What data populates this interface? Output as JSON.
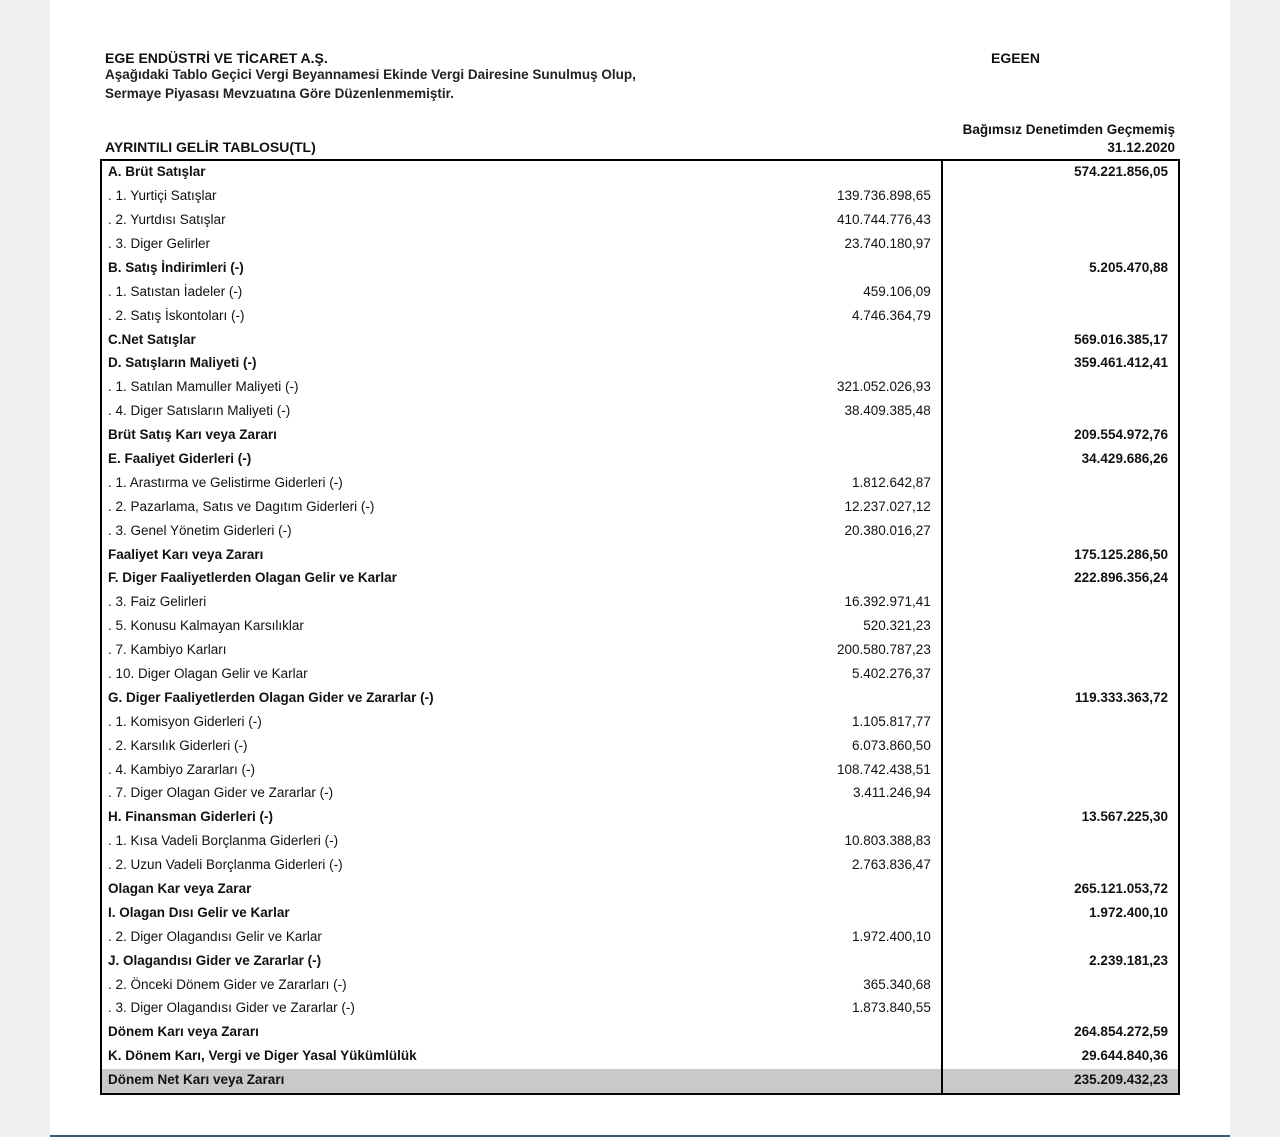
{
  "header": {
    "company": "EGE ENDÜSTRİ VE TİCARET A.Ş.",
    "ticker": "EGEEN",
    "subtitle1": "Aşağıdaki Tablo Geçici Vergi Beyannamesi Ekinde Vergi Dairesine Sunulmuş Olup,",
    "subtitle2": "Sermaye Piyasası Mevzuatına Göre Düzenlenmemiştir.",
    "title": "AYRINTILI GELİR TABLOSU(TL)",
    "audit": "Bağımsız Denetimden Geçmemiş",
    "date": "31.12.2020"
  },
  "rows": [
    {
      "label": "A. Brüt Satışlar",
      "c1": "",
      "c2": "574.221.856,05",
      "bold": true
    },
    {
      "label": ". 1. Yurtiçi Satışlar",
      "c1": "139.736.898,65",
      "c2": "",
      "bold": false,
      "indent": true
    },
    {
      "label": ". 2. Yurtdısı Satışlar",
      "c1": "410.744.776,43",
      "c2": "",
      "bold": false,
      "indent": true
    },
    {
      "label": ". 3. Diger Gelirler",
      "c1": "23.740.180,97",
      "c2": "",
      "bold": false,
      "indent": true
    },
    {
      "label": "B. Satış İndirimleri (-)",
      "c1": "",
      "c2": "5.205.470,88",
      "bold": true
    },
    {
      "label": ". 1. Satıstan İadeler (-)",
      "c1": "459.106,09",
      "c2": "",
      "bold": false,
      "indent": true
    },
    {
      "label": ". 2. Satış İskontoları (-)",
      "c1": "4.746.364,79",
      "c2": "",
      "bold": false,
      "indent": true
    },
    {
      "label": "C.Net Satışlar",
      "c1": "",
      "c2": "569.016.385,17",
      "bold": true
    },
    {
      "label": "D. Satışların Maliyeti (-)",
      "c1": "",
      "c2": "359.461.412,41",
      "bold": true
    },
    {
      "label": ". 1. Satılan Mamuller Maliyeti (-)",
      "c1": "321.052.026,93",
      "c2": "",
      "bold": false,
      "indent": true
    },
    {
      "label": ". 4. Diger Satısların Maliyeti (-)",
      "c1": "38.409.385,48",
      "c2": "",
      "bold": false,
      "indent": true
    },
    {
      "label": "Brüt Satış Karı veya Zararı",
      "c1": "",
      "c2": "209.554.972,76",
      "bold": true
    },
    {
      "label": "E. Faaliyet Giderleri (-)",
      "c1": "",
      "c2": "34.429.686,26",
      "bold": true
    },
    {
      "label": ". 1. Arastırma ve Gelistirme Giderleri (-)",
      "c1": "1.812.642,87",
      "c2": "",
      "bold": false,
      "indent": true
    },
    {
      "label": ". 2. Pazarlama, Satıs ve Dagıtım Giderleri (-)",
      "c1": "12.237.027,12",
      "c2": "",
      "bold": false,
      "indent": true
    },
    {
      "label": ". 3. Genel Yönetim Giderleri (-)",
      "c1": "20.380.016,27",
      "c2": "",
      "bold": false,
      "indent": true
    },
    {
      "label": "Faaliyet Karı veya Zararı",
      "c1": "",
      "c2": "175.125.286,50",
      "bold": true
    },
    {
      "label": "F. Diger Faaliyetlerden Olagan Gelir ve Karlar",
      "c1": "",
      "c2": "222.896.356,24",
      "bold": true
    },
    {
      "label": ". 3. Faiz Gelirleri",
      "c1": "16.392.971,41",
      "c2": "",
      "bold": false,
      "indent": true
    },
    {
      "label": ". 5. Konusu Kalmayan Karsılıklar",
      "c1": "520.321,23",
      "c2": "",
      "bold": false,
      "indent": true
    },
    {
      "label": ". 7. Kambiyo Karları",
      "c1": "200.580.787,23",
      "c2": "",
      "bold": false,
      "indent": true
    },
    {
      "label": ". 10. Diger Olagan Gelir ve Karlar",
      "c1": "5.402.276,37",
      "c2": "",
      "bold": false,
      "indent": true
    },
    {
      "label": "G. Diger Faaliyetlerden Olagan Gider ve Zararlar (-)",
      "c1": "",
      "c2": "119.333.363,72",
      "bold": true
    },
    {
      "label": ". 1. Komisyon Giderleri (-)",
      "c1": "1.105.817,77",
      "c2": "",
      "bold": false,
      "indent": true
    },
    {
      "label": ". 2. Karsılık Giderleri (-)",
      "c1": "6.073.860,50",
      "c2": "",
      "bold": false,
      "indent": true
    },
    {
      "label": ". 4. Kambiyo Zararları (-)",
      "c1": "108.742.438,51",
      "c2": "",
      "bold": false,
      "indent": true
    },
    {
      "label": ". 7. Diger Olagan Gider ve Zararlar (-)",
      "c1": "3.411.246,94",
      "c2": "",
      "bold": false,
      "indent": true
    },
    {
      "label": "H. Finansman Giderleri (-)",
      "c1": "",
      "c2": "13.567.225,30",
      "bold": true
    },
    {
      "label": ". 1. Kısa Vadeli Borçlanma Giderleri (-)",
      "c1": "10.803.388,83",
      "c2": "",
      "bold": false,
      "indent": true
    },
    {
      "label": ". 2. Uzun Vadeli Borçlanma Giderleri (-)",
      "c1": "2.763.836,47",
      "c2": "",
      "bold": false,
      "indent": true
    },
    {
      "label": "Olagan Kar veya Zarar",
      "c1": "",
      "c2": "265.121.053,72",
      "bold": true
    },
    {
      "label": "I. Olagan Dısı Gelir ve Karlar",
      "c1": "",
      "c2": "1.972.400,10",
      "bold": true
    },
    {
      "label": ". 2. Diger Olagandısı Gelir ve Karlar",
      "c1": "1.972.400,10",
      "c2": "",
      "bold": false,
      "indent": true
    },
    {
      "label": "J. Olagandısı Gider ve Zararlar (-)",
      "c1": "",
      "c2": "2.239.181,23",
      "bold": true
    },
    {
      "label": ". 2. Önceki Dönem Gider ve Zararları (-)",
      "c1": "365.340,68",
      "c2": "",
      "bold": false,
      "indent": true
    },
    {
      "label": ". 3. Diger Olagandısı Gider ve Zararlar (-)",
      "c1": "1.873.840,55",
      "c2": "",
      "bold": false,
      "indent": true
    },
    {
      "label": "Dönem Karı veya Zararı",
      "c1": "",
      "c2": "264.854.272,59",
      "bold": true
    },
    {
      "label": "K. Dönem Karı, Vergi ve Diger Yasal Yükümlülük",
      "c1": "",
      "c2": "29.644.840,36",
      "bold": true
    },
    {
      "label": "Dönem Net Karı veya Zararı",
      "c1": "",
      "c2": "235.209.432,23",
      "bold": true,
      "shade": true
    }
  ]
}
